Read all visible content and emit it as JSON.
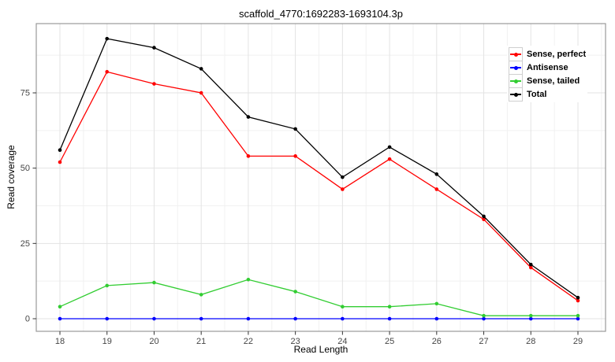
{
  "figure": {
    "title": "scaffold_4770:1692283-1693104.3p",
    "xlabel": "Read Length",
    "ylabel": "Read coverage"
  },
  "chart_data": {
    "type": "line",
    "title": "scaffold_4770:1692283-1693104.3p",
    "xlabel": "Read Length",
    "ylabel": "Read coverage",
    "x": [
      18,
      19,
      20,
      21,
      22,
      23,
      24,
      25,
      26,
      27,
      28,
      29
    ],
    "xticks": [
      18,
      19,
      20,
      21,
      22,
      23,
      24,
      25,
      26,
      27,
      28,
      29
    ],
    "yticks": [
      0,
      25,
      50,
      75
    ],
    "ylim": [
      0,
      93
    ],
    "grid": true,
    "legend_position": "top-right-inside",
    "panel_background": "#ffffff",
    "panel_border_color": "#999999",
    "major_grid_color": "#e3e3e3",
    "minor_grid_color": "#f1f1f1",
    "series": [
      {
        "name": "Sense, perfect",
        "color": "#ff0000",
        "values": [
          52,
          82,
          78,
          75,
          54,
          54,
          43,
          53,
          43,
          33,
          17,
          6
        ]
      },
      {
        "name": "Antisense",
        "color": "#0000ff",
        "values": [
          0,
          0,
          0,
          0,
          0,
          0,
          0,
          0,
          0,
          0,
          0,
          0
        ]
      },
      {
        "name": "Sense, tailed",
        "color": "#32cd32",
        "values": [
          4,
          11,
          12,
          8,
          13,
          9,
          4,
          4,
          5,
          1,
          1,
          1
        ]
      },
      {
        "name": "Total",
        "color": "#000000",
        "values": [
          56,
          93,
          90,
          83,
          67,
          63,
          47,
          57,
          48,
          34,
          18,
          7
        ]
      }
    ]
  }
}
